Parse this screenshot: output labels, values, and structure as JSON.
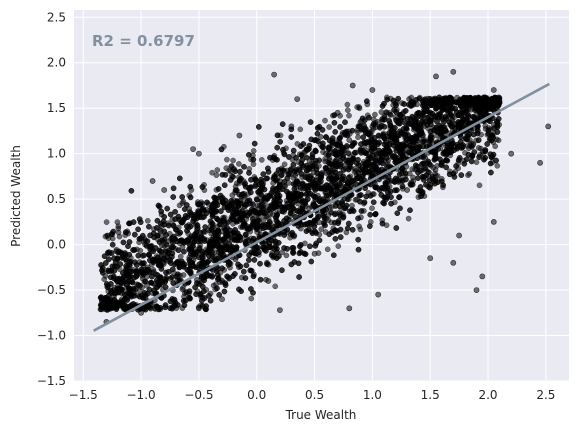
{
  "chart_data": {
    "type": "scatter",
    "title": "",
    "xlabel": "True Wealth",
    "ylabel": "Predicted Wealth",
    "xlim": [
      -1.58,
      2.7
    ],
    "ylim": [
      -1.5,
      2.58
    ],
    "xticks": [
      -1.5,
      -1.0,
      -0.5,
      0.0,
      0.5,
      1.0,
      1.5,
      2.0,
      2.5
    ],
    "xtick_labels": [
      "−1.5",
      "−1.0",
      "−0.5",
      "0.0",
      "0.5",
      "1.0",
      "1.5",
      "2.0",
      "2.5"
    ],
    "yticks": [
      -1.5,
      -1.0,
      -0.5,
      0.0,
      0.5,
      1.0,
      1.5,
      2.0,
      2.5
    ],
    "ytick_labels": [
      "−1.5",
      "−1.0",
      "−0.5",
      "0.0",
      "0.5",
      "1.0",
      "1.5",
      "2.0",
      "2.5"
    ],
    "grid": true,
    "annotation": "R2 = 0.6797",
    "fit_line": {
      "x": [
        -1.4,
        2.52
      ],
      "y": [
        -0.94,
        1.76
      ]
    },
    "points": [
      [
        -1.25,
        -0.62
      ],
      [
        -1.1,
        -0.48
      ],
      [
        -0.95,
        -0.3
      ],
      [
        -0.8,
        -0.15
      ],
      [
        -0.6,
        0.05
      ],
      [
        -0.4,
        0.2
      ],
      [
        -0.2,
        0.35
      ],
      [
        0.0,
        0.5
      ],
      [
        0.2,
        0.7
      ],
      [
        0.4,
        0.85
      ],
      [
        0.6,
        1.0
      ],
      [
        0.8,
        1.15
      ],
      [
        1.0,
        1.3
      ],
      [
        1.2,
        1.4
      ],
      [
        1.4,
        1.45
      ],
      [
        1.6,
        1.5
      ],
      [
        -0.3,
        -0.6
      ],
      [
        0.1,
        -0.4
      ],
      [
        0.5,
        -0.1
      ],
      [
        0.9,
        0.3
      ],
      [
        1.3,
        0.6
      ],
      [
        1.6,
        0.9
      ],
      [
        -1.3,
        -0.85
      ],
      [
        -1.0,
        -0.75
      ],
      [
        -0.5,
        -0.7
      ],
      [
        0.2,
        -0.72
      ],
      [
        0.8,
        -0.7
      ],
      [
        -0.8,
        0.6
      ],
      [
        -0.5,
        1.0
      ],
      [
        -0.15,
        1.2
      ],
      [
        0.3,
        1.3
      ],
      [
        0.7,
        1.45
      ],
      [
        1.05,
        -0.55
      ],
      [
        1.5,
        -0.15
      ],
      [
        1.75,
        0.1
      ],
      [
        2.05,
        0.25
      ],
      [
        2.2,
        1.0
      ],
      [
        2.45,
        0.9
      ],
      [
        -0.55,
        1.05
      ],
      [
        -0.9,
        0.7
      ],
      [
        1.7,
        1.9
      ],
      [
        1.55,
        1.85
      ],
      [
        2.05,
        1.7
      ],
      [
        1.95,
        -0.35
      ],
      [
        1.7,
        -0.2
      ],
      [
        1.9,
        -0.5
      ],
      [
        2.52,
        1.3
      ],
      [
        0.15,
        1.87
      ],
      [
        1.0,
        1.7
      ],
      [
        0.83,
        1.75
      ],
      [
        0.35,
        1.6
      ]
    ],
    "cloud": [
      {
        "x": [
          -1.35,
          2.1
        ],
        "y_mean_at_x0": 0.3,
        "slope": 0.62,
        "spread": 0.55,
        "floor": -0.72
      }
    ]
  },
  "colors": {
    "background": "#eaeaf2",
    "grid": "#ffffff",
    "points": "#000000",
    "fit_line": "#8390a0",
    "annotation": "#8390a0"
  }
}
